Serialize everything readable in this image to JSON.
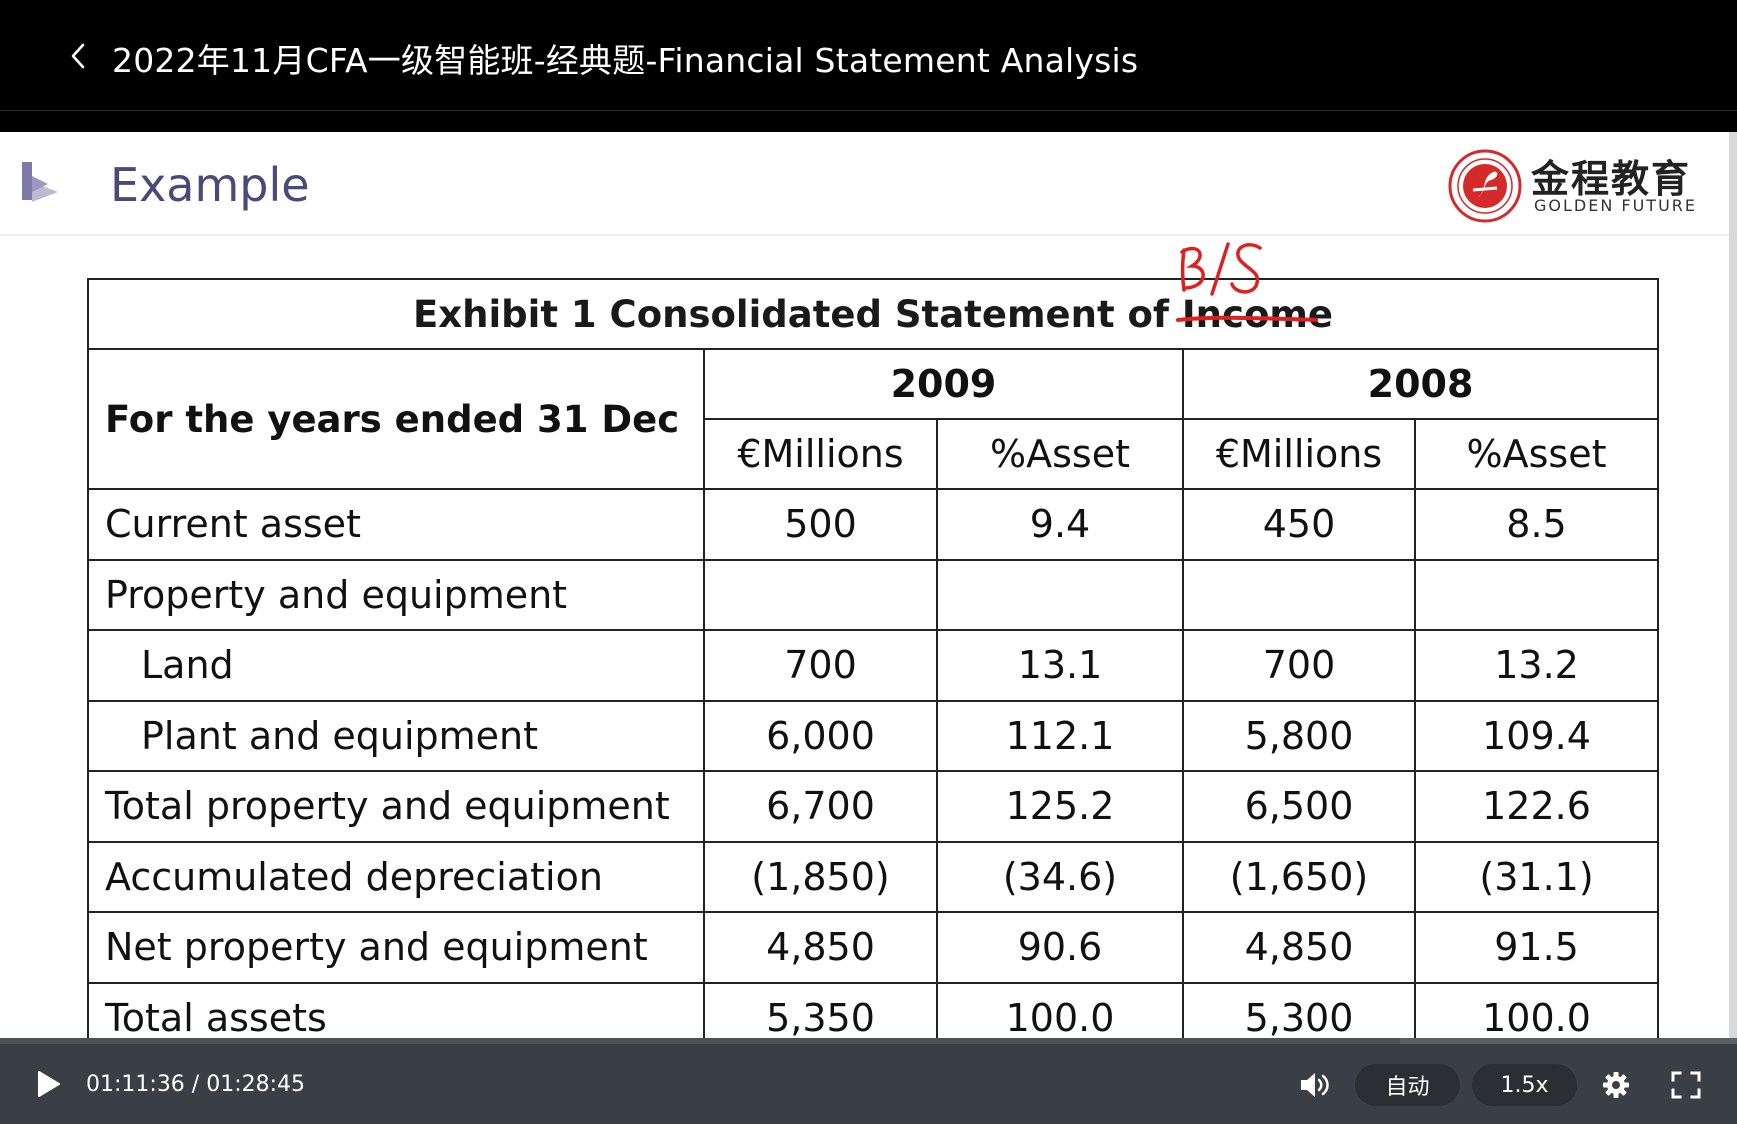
{
  "header": {
    "title": "2022年11月CFA一级智能班-经典题-Financial Statement Analysis"
  },
  "slide": {
    "heading": "Example",
    "brand": {
      "name_cn": "金程教育",
      "name_en": "GOLDEN FUTURE"
    },
    "exhibit": {
      "caption": "Exhibit 1 Consolidated Statement of Income",
      "row_header": "For the years ended 31 Dec",
      "years": [
        "2009",
        "2008"
      ],
      "subheaders": [
        "€Millions",
        "%Asset",
        "€Millions",
        "%Asset"
      ],
      "rows": [
        {
          "label": "Current asset",
          "values": [
            "500",
            "9.4",
            "450",
            "8.5"
          ]
        },
        {
          "label": "Property and equipment",
          "values": [
            "",
            "",
            "",
            ""
          ]
        },
        {
          "label": "Land",
          "values": [
            "700",
            "13.1",
            "700",
            "13.2"
          ]
        },
        {
          "label": "Plant and equipment",
          "values": [
            "6,000",
            "112.1",
            "5,800",
            "109.4"
          ]
        },
        {
          "label": "Total property and equipment",
          "values": [
            "6,700",
            "125.2",
            "6,500",
            "122.6"
          ]
        },
        {
          "label": "Accumulated depreciation",
          "values": [
            "(1,850)",
            "(34.6)",
            "(1,650)",
            "(31.1)"
          ]
        },
        {
          "label": "Net property and equipment",
          "values": [
            "4,850",
            "90.6",
            "4,850",
            "91.5"
          ]
        },
        {
          "label": "Total assets",
          "values": [
            "5,350",
            "100.0",
            "5,300",
            "100.0"
          ]
        }
      ]
    },
    "annotation": {
      "handwritten_text": "B/S",
      "color": "#e02020"
    }
  },
  "player": {
    "time": "01:11:36 / 01:28:45",
    "progress_fraction": 0.806,
    "quality_label": "自动",
    "speed_label": "1.5x"
  }
}
